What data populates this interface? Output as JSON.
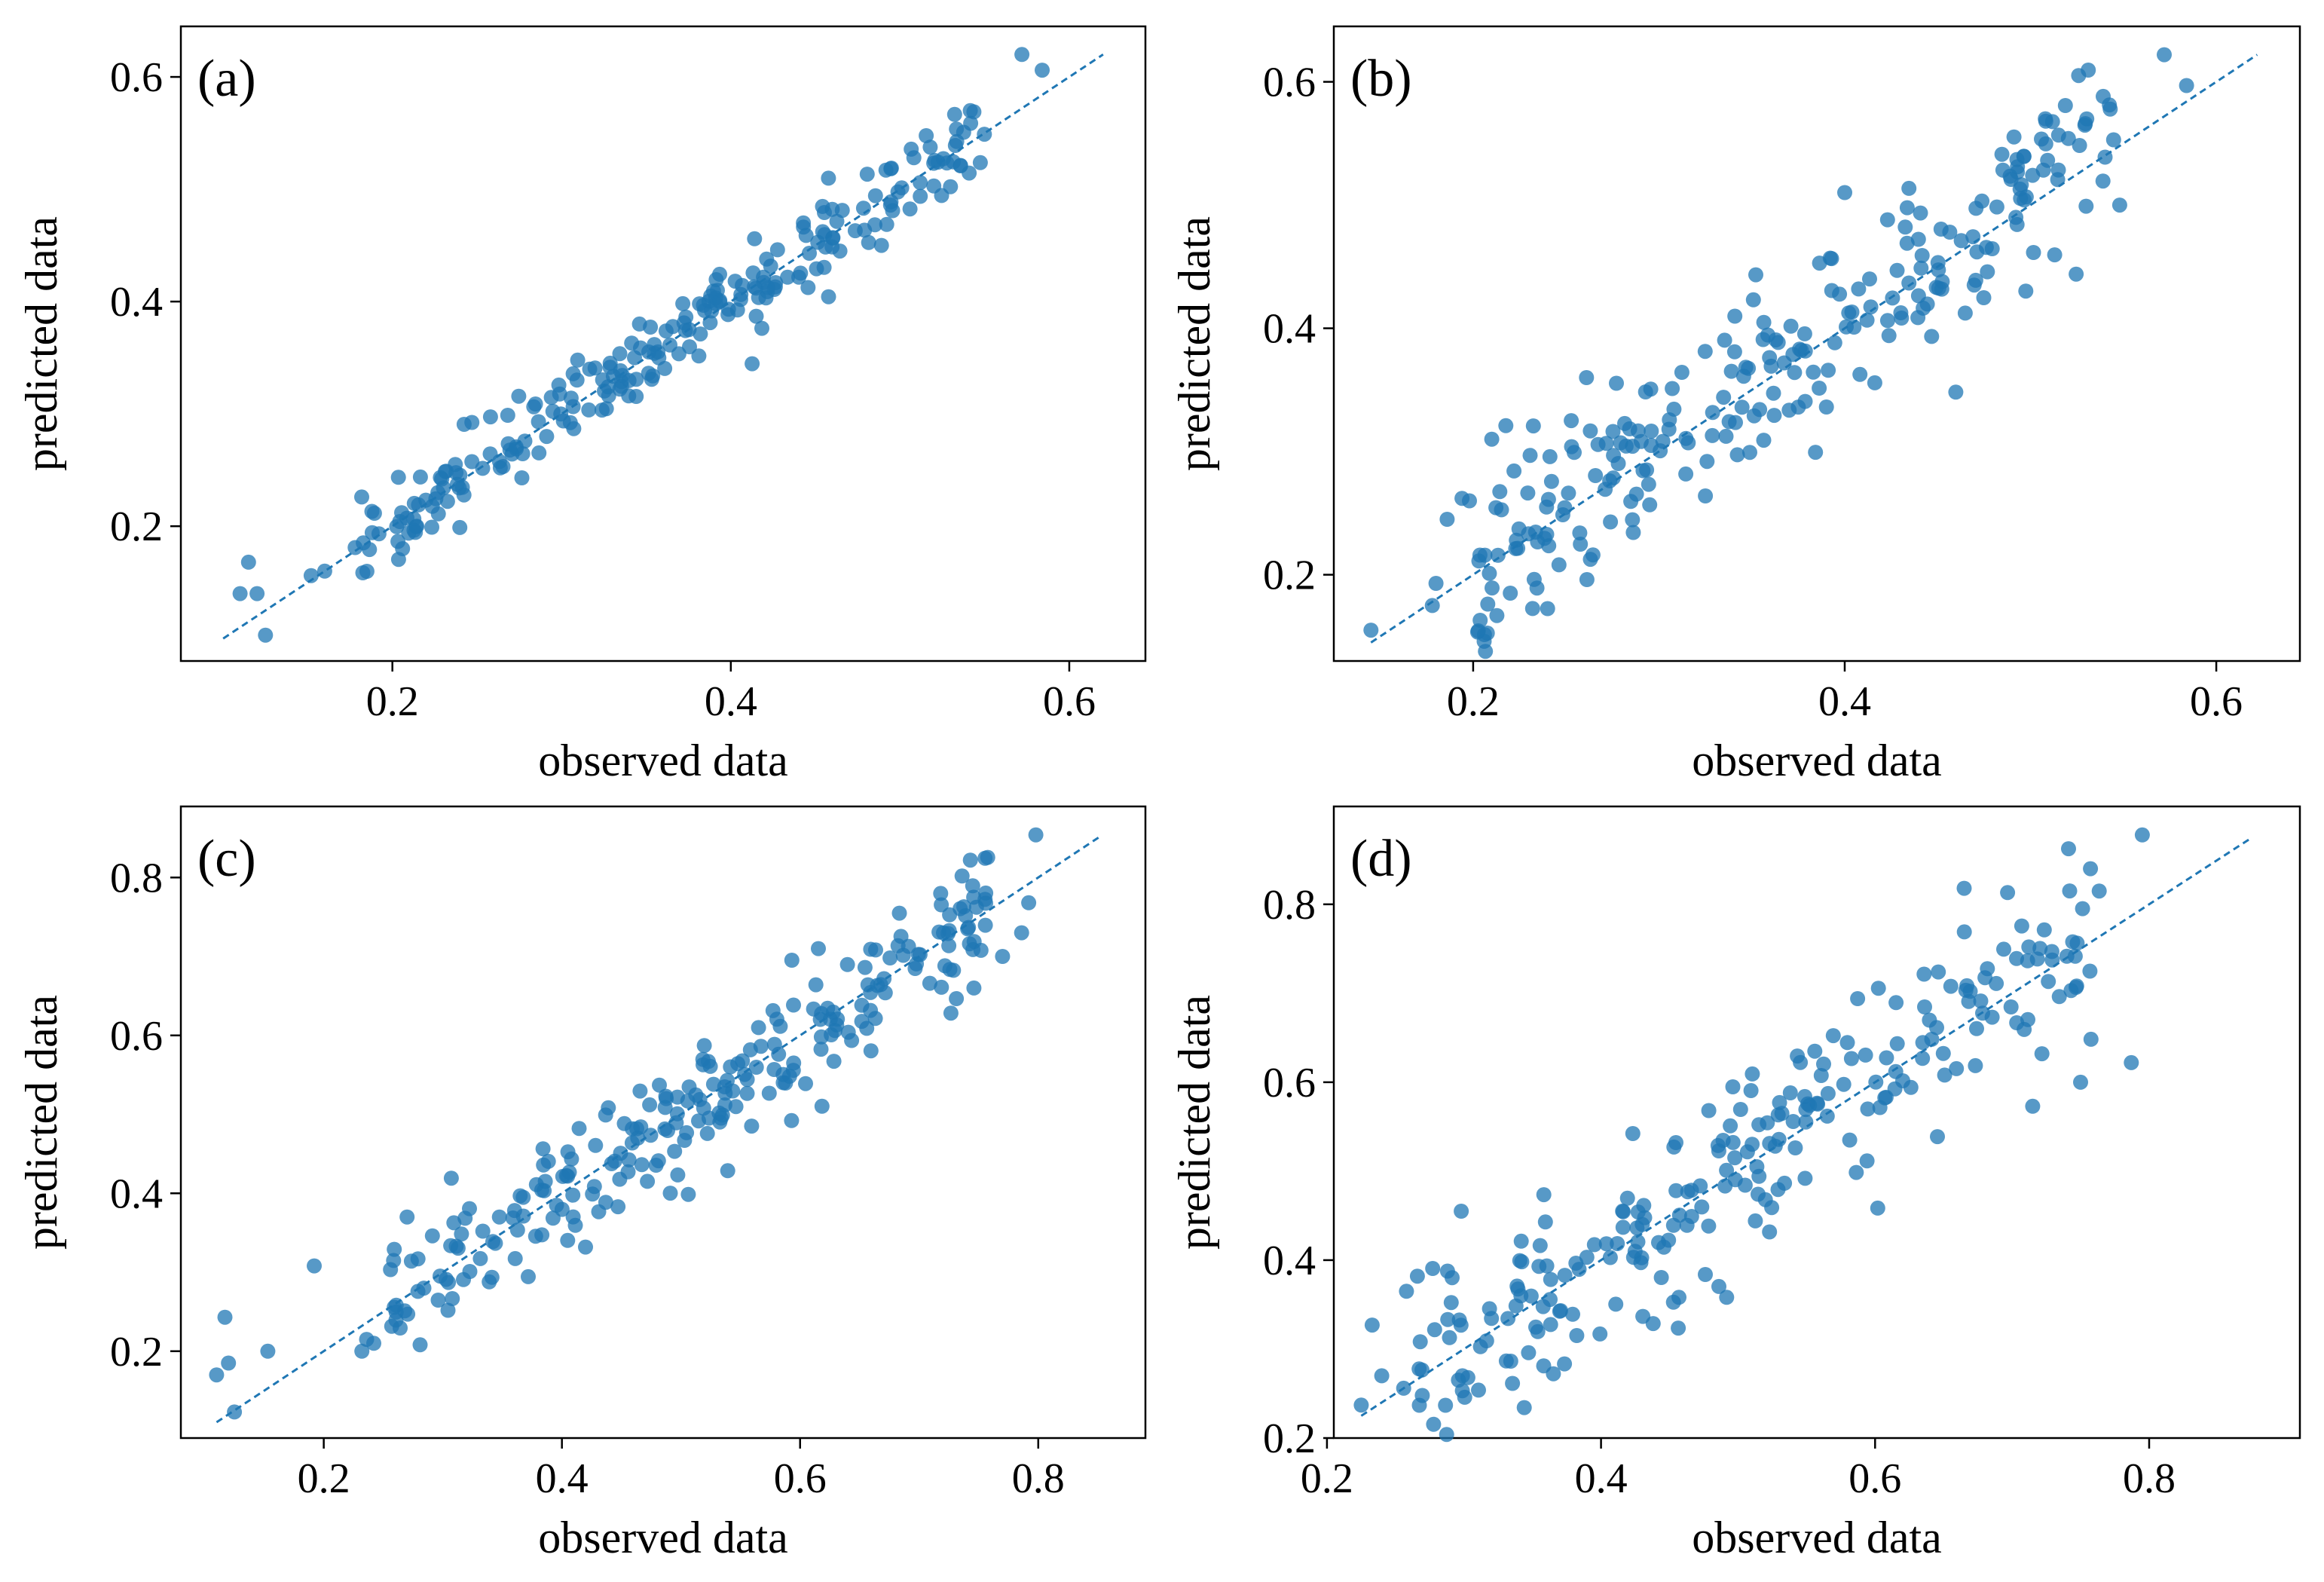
{
  "figure": {
    "point_color": "#1f77b4",
    "line_color": "#1f77b4"
  },
  "chart_data": [
    {
      "type": "scatter",
      "panel_label": "(a)",
      "xlabel": "observed data",
      "ylabel": "predicted data",
      "xlim": [
        0.075,
        0.645
      ],
      "ylim": [
        0.08,
        0.645
      ],
      "xticks": [
        0.2,
        0.4,
        0.6
      ],
      "xtick_labels": [
        "0.2",
        "0.4",
        "0.6"
      ],
      "yticks": [
        0.2,
        0.4,
        0.6
      ],
      "ytick_labels": [
        "0.2",
        "0.4",
        "0.6"
      ],
      "reference_line": {
        "style": "dashed",
        "from": [
          0.1,
          0.1
        ],
        "to": [
          0.62,
          0.62
        ]
      },
      "cloud": {
        "count": 240,
        "x_range": [
          0.18,
          0.55
        ],
        "noise": 0.018,
        "seed": 11
      },
      "points": [
        [
          0.11,
          0.14
        ],
        [
          0.115,
          0.168
        ],
        [
          0.12,
          0.14
        ],
        [
          0.125,
          0.103
        ],
        [
          0.152,
          0.156
        ],
        [
          0.572,
          0.62
        ],
        [
          0.584,
          0.606
        ],
        [
          0.16,
          0.16
        ],
        [
          0.178,
          0.181
        ],
        [
          0.206,
          0.18
        ],
        [
          0.489,
          0.45
        ],
        [
          0.346,
          0.38
        ]
      ]
    },
    {
      "type": "scatter",
      "panel_label": "(b)",
      "xlabel": "observed data",
      "ylabel": "predicted data",
      "xlim": [
        0.125,
        0.645
      ],
      "ylim": [
        0.13,
        0.645
      ],
      "xticks": [
        0.2,
        0.4,
        0.6
      ],
      "xtick_labels": [
        "0.2",
        "0.4",
        "0.6"
      ],
      "yticks": [
        0.2,
        0.4,
        0.6
      ],
      "ytick_labels": [
        "0.2",
        "0.4",
        "0.6"
      ],
      "reference_line": {
        "style": "dashed",
        "from": [
          0.145,
          0.145
        ],
        "to": [
          0.622,
          0.622
        ]
      },
      "cloud": {
        "count": 250,
        "x_range": [
          0.2,
          0.545
        ],
        "noise": 0.038,
        "seed": 23
      },
      "points": [
        [
          0.145,
          0.155
        ],
        [
          0.178,
          0.175
        ],
        [
          0.18,
          0.193
        ],
        [
          0.186,
          0.245
        ],
        [
          0.194,
          0.262
        ],
        [
          0.198,
          0.26
        ],
        [
          0.21,
          0.31
        ],
        [
          0.261,
          0.36
        ],
        [
          0.572,
          0.622
        ],
        [
          0.584,
          0.597
        ],
        [
          0.508,
          0.57
        ],
        [
          0.548,
          0.5
        ]
      ]
    },
    {
      "type": "scatter",
      "panel_label": "(c)",
      "xlabel": "observed data",
      "ylabel": "predicted data",
      "xlim": [
        0.08,
        0.89
      ],
      "ylim": [
        0.09,
        0.89
      ],
      "xticks": [
        0.2,
        0.4,
        0.6,
        0.8
      ],
      "xtick_labels": [
        "0.2",
        "0.4",
        "0.6",
        "0.8"
      ],
      "yticks": [
        0.2,
        0.4,
        0.6,
        0.8
      ],
      "ytick_labels": [
        "0.2",
        "0.4",
        "0.6",
        "0.8"
      ],
      "reference_line": {
        "style": "dashed",
        "from": [
          0.11,
          0.11
        ],
        "to": [
          0.852,
          0.852
        ]
      },
      "cloud": {
        "count": 245,
        "x_range": [
          0.255,
          0.76
        ],
        "noise": 0.04,
        "seed": 37
      },
      "points": [
        [
          0.11,
          0.17
        ],
        [
          0.117,
          0.243
        ],
        [
          0.12,
          0.185
        ],
        [
          0.125,
          0.123
        ],
        [
          0.153,
          0.2
        ],
        [
          0.192,
          0.308
        ],
        [
          0.232,
          0.2
        ],
        [
          0.236,
          0.215
        ],
        [
          0.242,
          0.21
        ],
        [
          0.27,
          0.37
        ],
        [
          0.798,
          0.854
        ],
        [
          0.743,
          0.822
        ],
        [
          0.792,
          0.768
        ],
        [
          0.786,
          0.73
        ],
        [
          0.77,
          0.7
        ],
        [
          0.746,
          0.66
        ]
      ]
    },
    {
      "type": "scatter",
      "panel_label": "(d)",
      "xlabel": "observed data",
      "ylabel": "predicted data",
      "xlim": [
        0.205,
        0.91
      ],
      "ylim": [
        0.2,
        0.91
      ],
      "xticks": [
        0.2,
        0.4,
        0.6,
        0.8
      ],
      "xtick_labels": [
        "0.2",
        "0.4",
        "0.6",
        "0.8"
      ],
      "yticks": [
        0.2,
        0.4,
        0.6,
        0.8
      ],
      "ytick_labels": [
        "0.2",
        "0.4",
        "0.6",
        "0.8"
      ],
      "reference_line": {
        "style": "dashed",
        "from": [
          0.225,
          0.225
        ],
        "to": [
          0.875,
          0.875
        ]
      },
      "cloud": {
        "count": 240,
        "x_range": [
          0.265,
          0.775
        ],
        "noise": 0.05,
        "seed": 53
      },
      "points": [
        [
          0.225,
          0.237
        ],
        [
          0.233,
          0.327
        ],
        [
          0.24,
          0.27
        ],
        [
          0.256,
          0.256
        ],
        [
          0.258,
          0.365
        ],
        [
          0.266,
          0.382
        ],
        [
          0.298,
          0.455
        ],
        [
          0.795,
          0.878
        ],
        [
          0.665,
          0.818
        ],
        [
          0.742,
          0.815
        ],
        [
          0.787,
          0.622
        ],
        [
          0.75,
          0.6
        ],
        [
          0.715,
          0.573
        ]
      ]
    }
  ]
}
